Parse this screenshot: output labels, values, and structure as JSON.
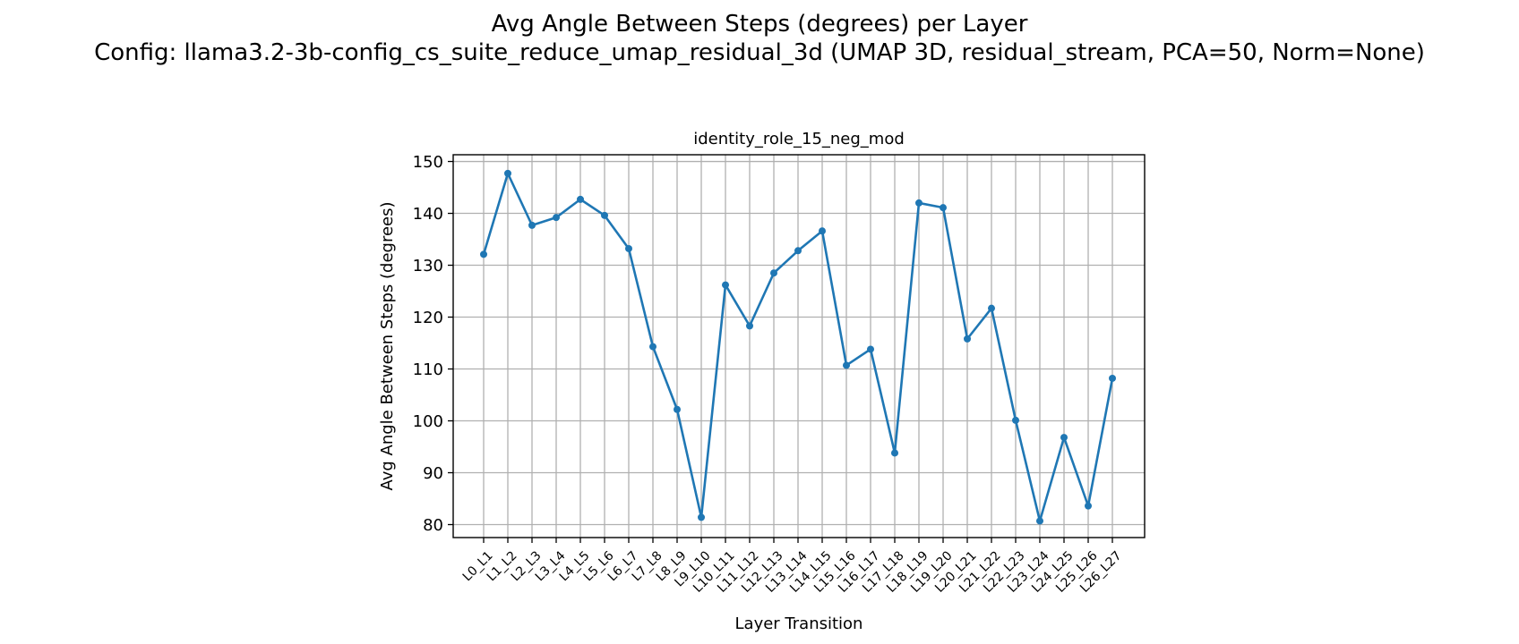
{
  "figure": {
    "title_line1": "Avg Angle Between Steps (degrees) per Layer",
    "title_line2": "Config: llama3.2-3b-config_cs_suite_reduce_umap_residual_3d (UMAP 3D, residual_stream, PCA=50, Norm=None)"
  },
  "chart_data": {
    "type": "line",
    "title": "identity_role_15_neg_mod",
    "xlabel": "Layer Transition",
    "ylabel": "Avg Angle Between Steps (degrees)",
    "ylim": [
      77.5,
      151.3
    ],
    "yticks": [
      80,
      90,
      100,
      110,
      120,
      130,
      140,
      150
    ],
    "grid": true,
    "line_color": "#1f77b4",
    "categories": [
      "L0_L1",
      "L1_L2",
      "L2_L3",
      "L3_L4",
      "L4_L5",
      "L5_L6",
      "L6_L7",
      "L7_L8",
      "L8_L9",
      "L9_L10",
      "L10_L11",
      "L11_L12",
      "L12_L13",
      "L13_L14",
      "L14_L15",
      "L15_L16",
      "L16_L17",
      "L17_L18",
      "L18_L19",
      "L19_L20",
      "L20_L21",
      "L21_L22",
      "L22_L23",
      "L23_L24",
      "L24_L25",
      "L25_L26",
      "L26_L27"
    ],
    "values": [
      132.1,
      147.7,
      137.7,
      139.2,
      142.7,
      139.6,
      133.2,
      114.3,
      102.2,
      81.4,
      126.2,
      118.3,
      128.5,
      132.8,
      136.6,
      110.7,
      113.8,
      93.8,
      142.0,
      141.1,
      115.8,
      121.7,
      100.1,
      80.7,
      96.8,
      83.6,
      108.2
    ]
  }
}
